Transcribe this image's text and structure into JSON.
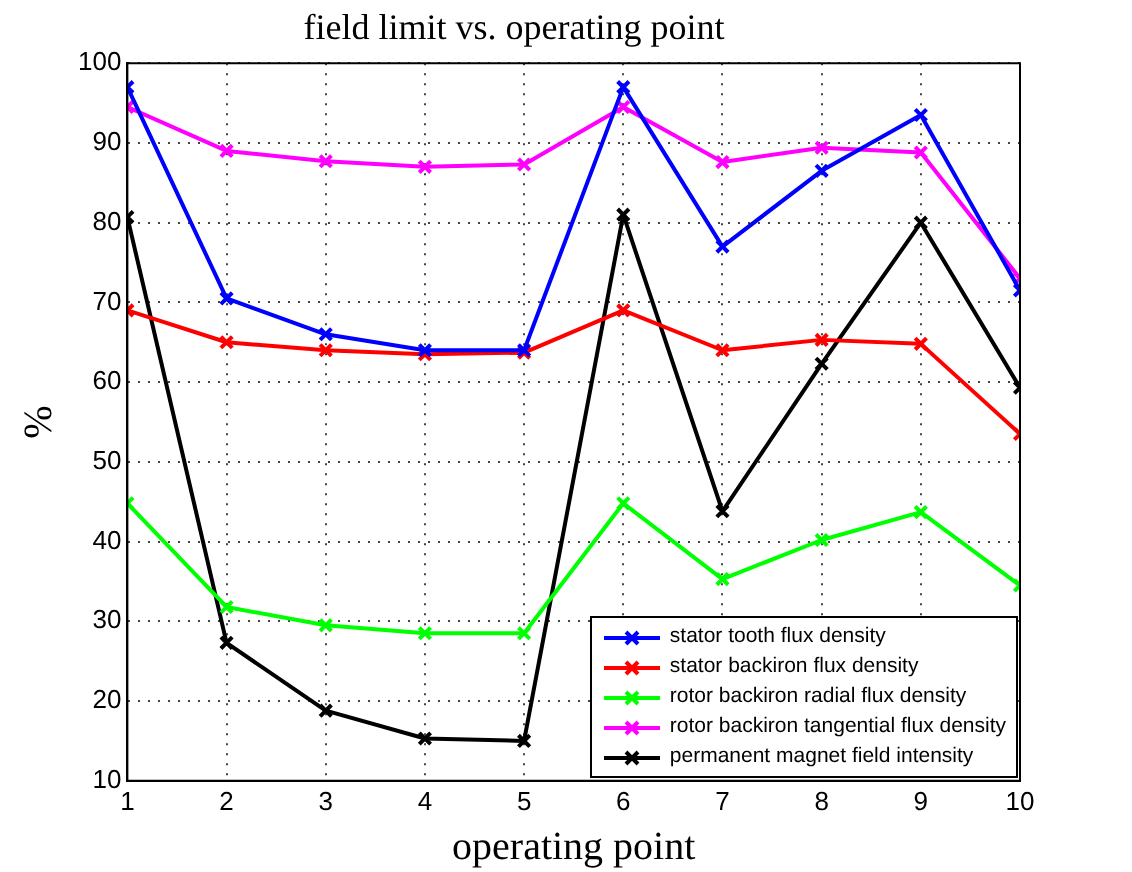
{
  "chart_data": {
    "type": "line",
    "title": "field limit vs. operating point",
    "xlabel": "operating point",
    "ylabel": "%",
    "x": [
      1,
      2,
      3,
      4,
      5,
      6,
      7,
      8,
      9,
      10
    ],
    "series": [
      {
        "name": "stator tooth flux density",
        "color": "#0000ff",
        "values": [
          97,
          70.5,
          66,
          64,
          64,
          97,
          77,
          86.5,
          93.5,
          71.5
        ]
      },
      {
        "name": "stator backiron flux density",
        "color": "#ff0000",
        "values": [
          69,
          65,
          64,
          63.5,
          63.7,
          69,
          64,
          65.3,
          64.8,
          53.5
        ]
      },
      {
        "name": "rotor backiron radial flux density",
        "color": "#00ff00",
        "values": [
          44.8,
          31.8,
          29.5,
          28.5,
          28.5,
          44.8,
          35.3,
          40.2,
          43.7,
          34.5
        ]
      },
      {
        "name": "rotor backiron tangential flux density",
        "color": "#ff00ff",
        "values": [
          94.5,
          89,
          87.7,
          87,
          87.3,
          94.5,
          87.6,
          89.4,
          88.8,
          73
        ]
      },
      {
        "name": "permanent magnet field intensity",
        "color": "#000000",
        "values": [
          80.7,
          27.3,
          18.8,
          15.3,
          15,
          81,
          43.8,
          62.3,
          80,
          59.3
        ]
      }
    ],
    "xlim": [
      1,
      10
    ],
    "xticks": [
      1,
      2,
      3,
      4,
      5,
      6,
      7,
      8,
      9,
      10
    ],
    "ylim": [
      10,
      100
    ],
    "yticks": [
      10,
      20,
      30,
      40,
      50,
      60,
      70,
      80,
      90,
      100
    ],
    "grid": true,
    "legend": "bottom right",
    "marker": "cross",
    "line_style": "solid"
  }
}
